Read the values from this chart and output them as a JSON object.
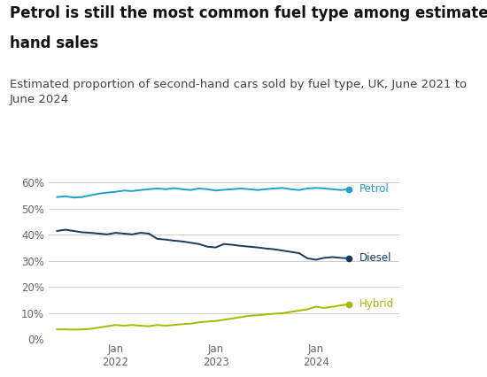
{
  "title1": "Petrol is still the most common fuel type among estimated second-",
  "title2": "hand sales",
  "subtitle": "Estimated proportion of second-hand cars sold by fuel type, UK, June 2021 to\nJune 2024",
  "title_fontsize": 12,
  "subtitle_fontsize": 9.5,
  "background_color": "#ffffff",
  "petrol_color": "#22a0c8",
  "diesel_color": "#1a3a5c",
  "hybrid_color": "#a8b800",
  "label_petrol": "Petrol",
  "label_diesel": "Diesel",
  "label_hybrid": "Hybrid",
  "x_tick_labels": [
    "Jan\n2022",
    "Jan\n2023",
    "Jan\n2024"
  ],
  "petrol": [
    54.5,
    54.8,
    54.3,
    54.5,
    55.2,
    55.8,
    56.2,
    56.5,
    57.0,
    56.8,
    57.2,
    57.5,
    57.8,
    57.5,
    57.9,
    57.5,
    57.2,
    57.8,
    57.5,
    57.0,
    57.3,
    57.5,
    57.8,
    57.5,
    57.2,
    57.5,
    57.8,
    58.0,
    57.5,
    57.2,
    57.8,
    58.0,
    57.8,
    57.5,
    57.2,
    57.5
  ],
  "diesel": [
    41.5,
    42.0,
    41.5,
    41.0,
    40.8,
    40.5,
    40.2,
    40.8,
    40.5,
    40.2,
    40.8,
    40.5,
    38.5,
    38.2,
    37.8,
    37.5,
    37.0,
    36.5,
    35.5,
    35.2,
    36.5,
    36.2,
    35.8,
    35.5,
    35.2,
    34.8,
    34.5,
    34.0,
    33.5,
    33.0,
    31.0,
    30.5,
    31.2,
    31.5,
    31.2,
    31.0
  ],
  "hybrid": [
    3.8,
    3.8,
    3.7,
    3.8,
    4.0,
    4.5,
    5.0,
    5.5,
    5.2,
    5.5,
    5.2,
    5.0,
    5.5,
    5.2,
    5.5,
    5.8,
    6.0,
    6.5,
    6.8,
    7.0,
    7.5,
    8.0,
    8.5,
    9.0,
    9.2,
    9.5,
    9.8,
    10.0,
    10.5,
    11.0,
    11.5,
    12.5,
    12.0,
    12.5,
    13.0,
    13.5
  ],
  "n_points": 36,
  "ylim": [
    0,
    65
  ],
  "yticks": [
    0,
    10,
    20,
    30,
    40,
    50,
    60
  ],
  "ytick_labels": [
    "0%",
    "10%",
    "20%",
    "30%",
    "40%",
    "50%",
    "60%"
  ]
}
